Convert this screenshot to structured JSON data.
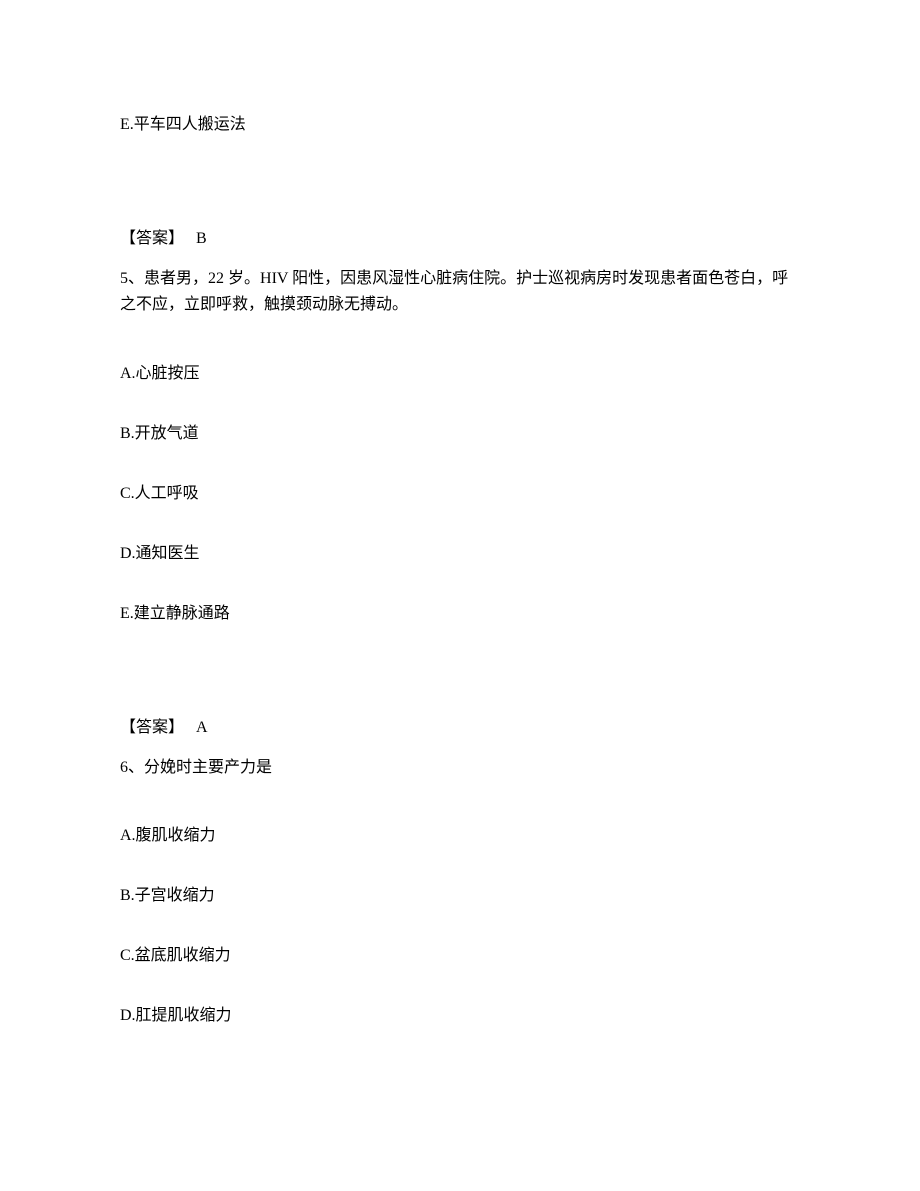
{
  "page": {
    "background_color": "#ffffff",
    "text_color": "#000000",
    "font_family": "SimSun",
    "base_fontsize": 16
  },
  "orphan_option": {
    "text": "E.平车四人搬运法"
  },
  "q4_answer": {
    "label": "【答案】",
    "value": "B"
  },
  "q5": {
    "number": "5、",
    "stem": "患者男，22 岁。HIV 阳性，因患风湿性心脏病住院。护士巡视病房时发现患者面色苍白，呼之不应，立即呼救，触摸颈动脉无搏动。",
    "options": {
      "A": "A.心脏按压",
      "B": "B.开放气道",
      "C": "C.人工呼吸",
      "D": "D.通知医生",
      "E": "E.建立静脉通路"
    },
    "answer_label": "【答案】",
    "answer_value": "A"
  },
  "q6": {
    "number": "6、",
    "stem": "分娩时主要产力是",
    "options": {
      "A": "A.腹肌收缩力",
      "B": "B.子宫收缩力",
      "C": "C.盆底肌收缩力",
      "D": "D.肛提肌收缩力"
    }
  }
}
